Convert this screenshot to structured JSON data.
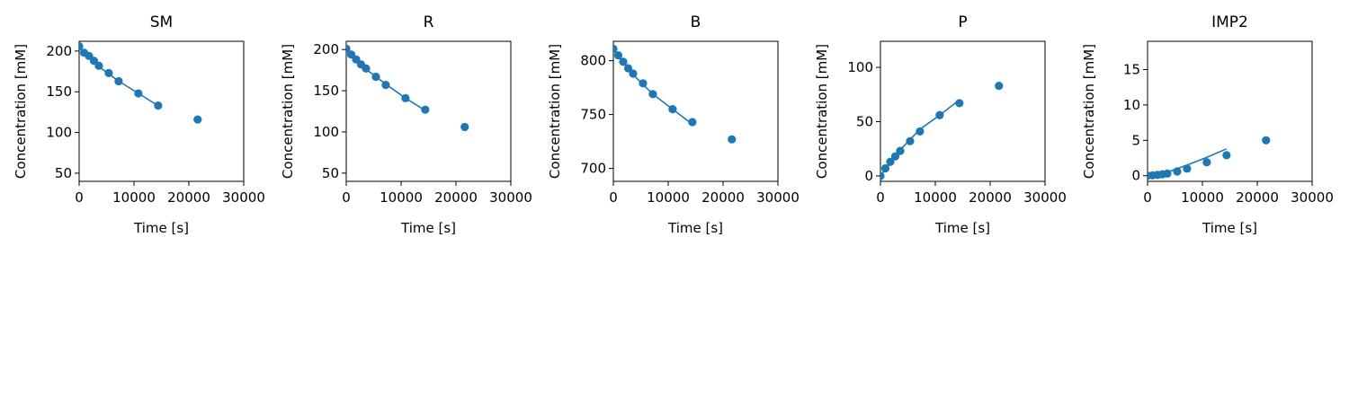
{
  "colors": {
    "series": "#1f77b4",
    "axis": "#000000",
    "background": "#ffffff"
  },
  "chart_data": [
    {
      "type": "scatter",
      "title": "SM",
      "xlabel": "Time [s]",
      "ylabel": "Concentration [mM]",
      "xlim": [
        0,
        30000
      ],
      "ylim": [
        40,
        212
      ],
      "xticks": [
        0,
        10000,
        20000,
        30000
      ],
      "yticks": [
        50,
        100,
        150,
        200
      ],
      "grid": false,
      "series": [
        {
          "kind": "points",
          "x": [
            0,
            900,
            1800,
            2700,
            3600,
            5400,
            7200,
            10800,
            14400,
            21600
          ],
          "y": [
            206,
            198,
            194,
            188,
            182,
            173,
            163,
            148,
            133,
            116
          ]
        },
        {
          "kind": "line",
          "x": [
            0,
            3600,
            7200,
            10800,
            14400
          ],
          "y": [
            205,
            181,
            163,
            148,
            133
          ]
        }
      ]
    },
    {
      "type": "scatter",
      "title": "R",
      "xlabel": "Time [s]",
      "ylabel": "Concentration [mM]",
      "xlim": [
        0,
        30000
      ],
      "ylim": [
        40,
        210
      ],
      "xticks": [
        0,
        10000,
        20000,
        30000
      ],
      "yticks": [
        50,
        100,
        150,
        200
      ],
      "grid": false,
      "series": [
        {
          "kind": "points",
          "x": [
            0,
            900,
            1800,
            2700,
            3600,
            5400,
            7200,
            10800,
            14400,
            21600
          ],
          "y": [
            201,
            194,
            188,
            182,
            177,
            167,
            157,
            141,
            127,
            106
          ]
        },
        {
          "kind": "line",
          "x": [
            0,
            3600,
            7200,
            10800,
            14400
          ],
          "y": [
            200,
            176,
            158,
            141,
            126
          ]
        }
      ]
    },
    {
      "type": "scatter",
      "title": "B",
      "xlabel": "Time [s]",
      "ylabel": "Concentration [mM]",
      "xlim": [
        0,
        30000
      ],
      "ylim": [
        688,
        818
      ],
      "xticks": [
        0,
        10000,
        20000,
        30000
      ],
      "yticks": [
        700,
        750,
        800
      ],
      "grid": false,
      "series": [
        {
          "kind": "points",
          "x": [
            0,
            900,
            1800,
            2700,
            3600,
            5400,
            7200,
            10800,
            14400,
            21600
          ],
          "y": [
            811,
            805,
            799,
            793,
            788,
            779,
            769,
            755,
            743,
            727
          ]
        },
        {
          "kind": "line",
          "x": [
            0,
            3600,
            7200,
            10800,
            14400
          ],
          "y": [
            810,
            787,
            769,
            755,
            741
          ]
        }
      ]
    },
    {
      "type": "scatter",
      "title": "P",
      "xlabel": "Time [s]",
      "ylabel": "Concentration [mM]",
      "xlim": [
        0,
        30000
      ],
      "ylim": [
        -5,
        124
      ],
      "xticks": [
        0,
        10000,
        20000,
        30000
      ],
      "yticks": [
        0,
        50,
        100
      ],
      "grid": false,
      "series": [
        {
          "kind": "points",
          "x": [
            0,
            900,
            1800,
            2700,
            3600,
            5400,
            7200,
            10800,
            14400,
            21600
          ],
          "y": [
            0,
            7,
            13,
            18,
            23,
            32,
            41,
            56,
            67,
            83
          ]
        },
        {
          "kind": "line",
          "x": [
            0,
            3600,
            7200,
            10800,
            14400
          ],
          "y": [
            0,
            24,
            43,
            56,
            70
          ]
        }
      ]
    },
    {
      "type": "scatter",
      "title": "IMP2",
      "xlabel": "Time [s]",
      "ylabel": "Concentration [mM]",
      "xlim": [
        0,
        30000
      ],
      "ylim": [
        -0.8,
        19
      ],
      "xticks": [
        0,
        10000,
        20000,
        30000
      ],
      "yticks": [
        0,
        5,
        10,
        15
      ],
      "grid": false,
      "series": [
        {
          "kind": "points",
          "x": [
            0,
            900,
            1800,
            2700,
            3600,
            5400,
            7200,
            10800,
            14400,
            21600
          ],
          "y": [
            0,
            0.05,
            0.1,
            0.2,
            0.3,
            0.6,
            1.0,
            1.9,
            2.9,
            5.0
          ]
        },
        {
          "kind": "line",
          "x": [
            0,
            3600,
            7200,
            10800,
            14400
          ],
          "y": [
            0,
            0.5,
            1.5,
            2.6,
            3.8
          ]
        }
      ]
    }
  ]
}
